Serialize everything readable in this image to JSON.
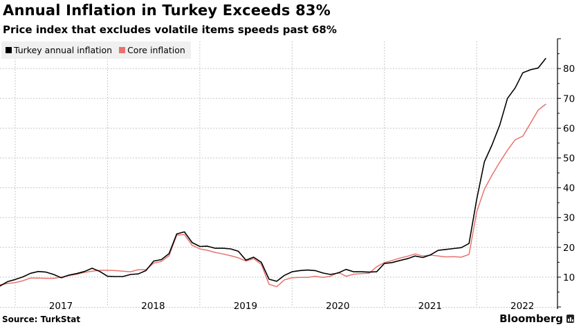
{
  "header": {
    "title": "Annual Inflation in Turkey Exceeds 83%",
    "subtitle": "Price index that excludes volatile items speeds past 68%"
  },
  "footer": {
    "source": "Source: TurkStat",
    "brand": "Bloomberg"
  },
  "colors": {
    "headline": "#000000",
    "core": "#e8726d",
    "grid": "#c8c8c8",
    "legend_bg": "#f0f0f0"
  },
  "chart_data": {
    "type": "line",
    "title": "Annual Inflation in Turkey Exceeds 83%",
    "subtitle": "Price index that excludes volatile items speeds past 68%",
    "xlabel": "",
    "ylabel": "",
    "ylim": [
      0,
      88
    ],
    "yticks": [
      10,
      20,
      30,
      40,
      50,
      60,
      70,
      80
    ],
    "xticks": [
      "2017",
      "2018",
      "2019",
      "2020",
      "2021",
      "2022"
    ],
    "grid": true,
    "legend_position": "top-left",
    "y_axis_side": "right",
    "x_start": "2016-06",
    "x_end": "2022-09",
    "legend": [
      "Turkey annual inflation",
      "Core inflation"
    ],
    "series": [
      {
        "name": "Turkey annual inflation",
        "color": "#000000",
        "values": [
          7.6,
          8.8,
          8.1,
          8.0,
          7.2,
          7.0,
          8.5,
          9.2,
          10.1,
          11.3,
          11.9,
          11.7,
          10.9,
          9.8,
          10.7,
          11.2,
          11.9,
          13.0,
          11.9,
          10.3,
          10.2,
          10.2,
          10.9,
          11.1,
          12.2,
          15.4,
          15.9,
          17.9,
          24.5,
          25.2,
          21.6,
          20.3,
          20.4,
          19.7,
          19.7,
          19.5,
          18.7,
          15.7,
          16.7,
          15.0,
          9.3,
          8.6,
          10.6,
          11.8,
          12.2,
          12.4,
          12.2,
          11.4,
          10.9,
          11.4,
          12.6,
          11.8,
          11.8,
          11.7,
          11.8,
          14.6,
          14.9,
          15.6,
          16.2,
          17.1,
          16.6,
          17.5,
          19.0,
          19.3,
          19.6,
          19.9,
          21.3,
          36.1,
          48.7,
          54.4,
          61.1,
          70.0,
          73.5,
          78.6,
          79.6,
          80.2,
          83.5
        ]
      },
      {
        "name": "Core inflation",
        "color": "#e8726d",
        "values": [
          8.0,
          7.5,
          7.1,
          7.0,
          7.3,
          7.4,
          7.9,
          8.2,
          8.8,
          9.7,
          9.7,
          9.6,
          9.6,
          10.0,
          10.5,
          11.0,
          11.6,
          12.0,
          12.3,
          12.3,
          12.2,
          12.0,
          11.8,
          12.5,
          12.5,
          14.7,
          15.3,
          17.2,
          24.1,
          24.3,
          20.7,
          19.5,
          19.0,
          18.3,
          17.8,
          17.2,
          16.5,
          15.4,
          16.2,
          14.3,
          7.6,
          6.8,
          9.1,
          9.8,
          9.9,
          9.9,
          10.3,
          9.9,
          10.3,
          11.6,
          10.3,
          11.0,
          11.2,
          11.3,
          13.5,
          14.9,
          15.6,
          16.4,
          17.0,
          17.8,
          17.1,
          17.4,
          17.1,
          16.8,
          16.9,
          16.7,
          17.6,
          31.9,
          39.5,
          44.3,
          48.6,
          52.6,
          56.1,
          57.3,
          61.7,
          66.1,
          68.1
        ]
      }
    ]
  }
}
